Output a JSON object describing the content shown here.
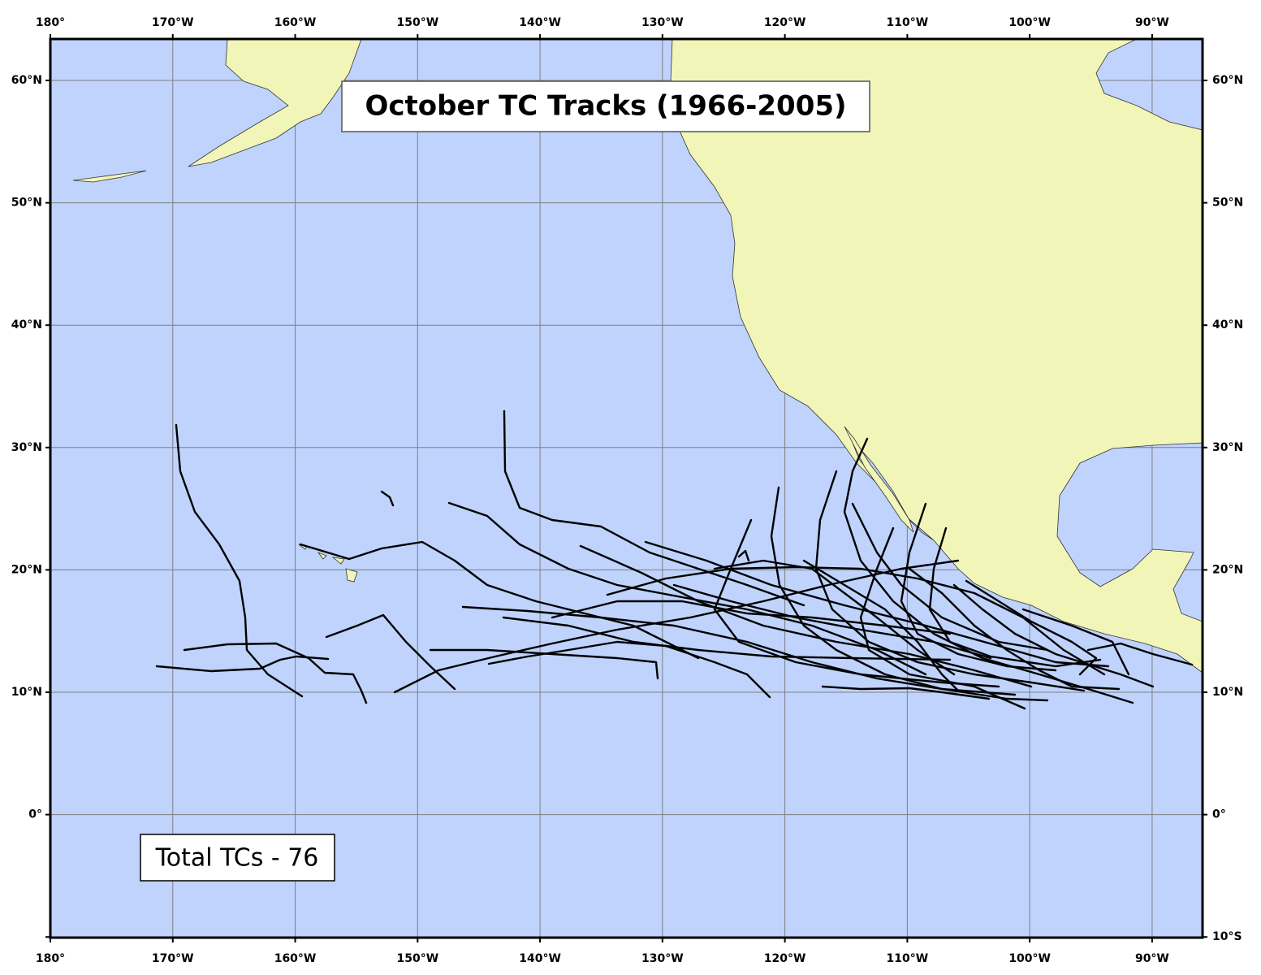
{
  "title": "October TC Tracks (1966-2005)",
  "total_label": "Total TCs - 76",
  "longitude_labels": [
    "180°",
    "170°W",
    "160°W",
    "150°W",
    "140°W",
    "130°W",
    "120°W",
    "110°W",
    "100°W",
    "90°W"
  ],
  "latitude_labels": [
    "60°N",
    "50°N",
    "40°N",
    "30°N",
    "20°N",
    "10°N",
    "0°",
    "10°S"
  ]
}
